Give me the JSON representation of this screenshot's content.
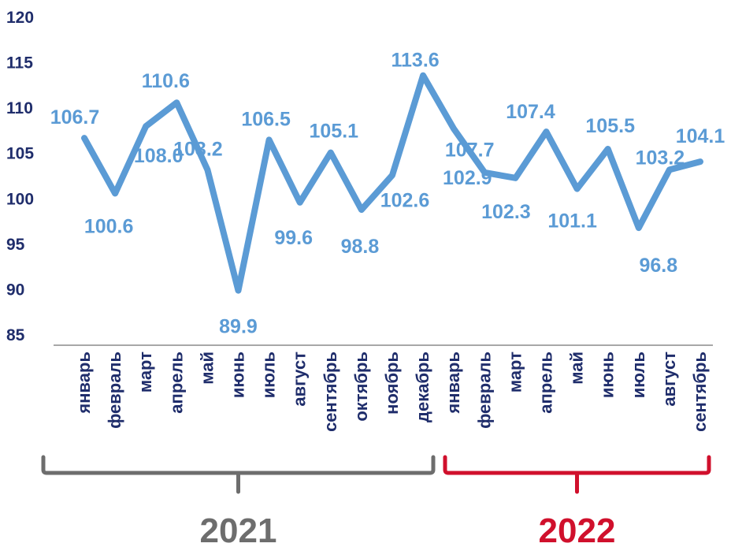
{
  "chart_data": {
    "type": "line",
    "title": "",
    "xlabel": "",
    "ylabel": "",
    "ylim": [
      85,
      120
    ],
    "yticks": [
      "85",
      "90",
      "95",
      "100",
      "105",
      "110",
      "115",
      "120"
    ],
    "grid": false,
    "categories": [
      "январь",
      "февраль",
      "март",
      "апрель",
      "май",
      "июнь",
      "июль",
      "август",
      "сентябрь",
      "октябрь",
      "ноябрь",
      "декабрь",
      "январь",
      "февраль",
      "март",
      "апрель",
      "май",
      "июнь",
      "июль",
      "август",
      "сентябрь"
    ],
    "series": [
      {
        "values": [
          106.7,
          100.6,
          108.0,
          110.6,
          103.2,
          89.9,
          106.5,
          99.6,
          105.1,
          98.8,
          102.6,
          113.6,
          107.7,
          102.9,
          102.3,
          107.4,
          101.1,
          105.5,
          96.8,
          103.2,
          104.1
        ],
        "labels": [
          "106.7",
          "100.6",
          "108.0",
          "110.6",
          "103.2",
          "89.9",
          "106.5",
          "99.6",
          "105.1",
          "98.8",
          "102.6",
          "113.6",
          "107.7",
          "102.9",
          "102.3",
          "107.4",
          "101.1",
          "105.5",
          "96.8",
          "103.2",
          "104.1"
        ]
      }
    ],
    "groups": [
      {
        "label": "2021",
        "start": 0,
        "end": 11,
        "color": "#6d6d6d"
      },
      {
        "label": "2022",
        "start": 12,
        "end": 20,
        "color": "#d0102c"
      }
    ],
    "colors": {
      "line": "#5b9bd5",
      "tick_text": "#1f2d6b",
      "axis": "#8c8c8c"
    }
  }
}
